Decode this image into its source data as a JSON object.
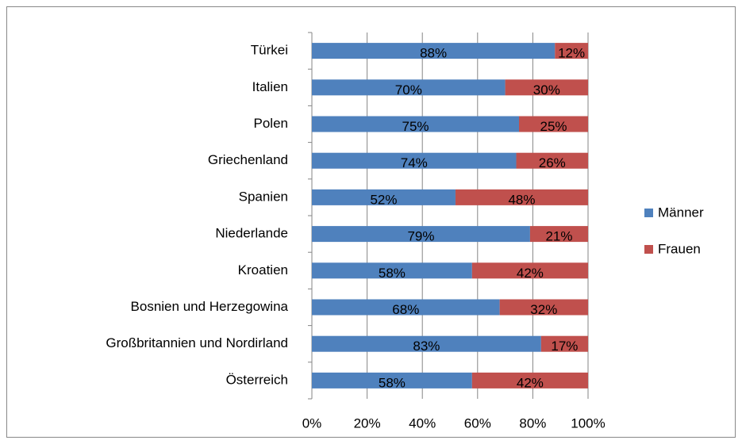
{
  "chart_data": {
    "type": "stacked-bar-horizontal",
    "categories": [
      "Türkei",
      "Italien",
      "Polen",
      "Griechenland",
      "Spanien",
      "Niederlande",
      "Kroatien",
      "Bosnien und Herzegowina",
      "Großbritannien und Nordirland",
      "Österreich"
    ],
    "series": [
      {
        "name": "Männer",
        "color": "#4f81bd",
        "values": [
          88,
          70,
          75,
          74,
          52,
          79,
          58,
          68,
          83,
          58
        ],
        "value_labels": [
          "88%",
          "70%",
          "75%",
          "74%",
          "52%",
          "79%",
          "58%",
          "68%",
          "83%",
          "58%"
        ]
      },
      {
        "name": "Frauen",
        "color": "#c0504d",
        "values": [
          12,
          30,
          25,
          26,
          48,
          21,
          42,
          32,
          17,
          42
        ],
        "value_labels": [
          "12%",
          "30%",
          "25%",
          "26%",
          "48%",
          "21%",
          "42%",
          "32%",
          "17%",
          "42%"
        ]
      }
    ],
    "xlim": [
      0,
      100
    ],
    "xticks": [
      {
        "value": 0,
        "label": "0%"
      },
      {
        "value": 20,
        "label": "20%"
      },
      {
        "value": 40,
        "label": "40%"
      },
      {
        "value": 60,
        "label": "60%"
      },
      {
        "value": 80,
        "label": "80%"
      },
      {
        "value": 100,
        "label": "100%"
      }
    ],
    "grid": true,
    "legend": "right"
  }
}
